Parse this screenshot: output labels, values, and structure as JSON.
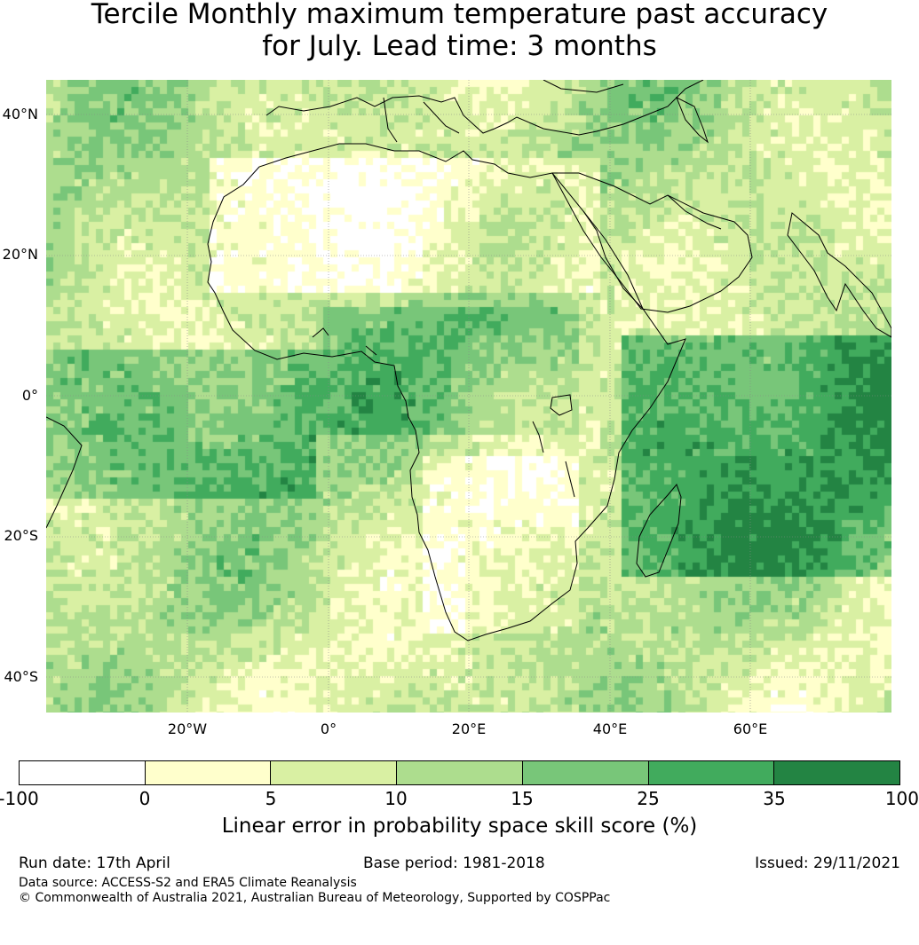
{
  "title_line1": "Tercile Monthly maximum temperature past accuracy",
  "title_line2": "for July. Lead time: 3 months",
  "lat_labels": [
    "40°N",
    "20°N",
    "0°",
    "20°S",
    "40°S"
  ],
  "lon_labels": [
    "20°W",
    "0°",
    "20°E",
    "40°E",
    "60°E"
  ],
  "colorbar": {
    "tick_labels": [
      "-100",
      "0",
      "5",
      "10",
      "15",
      "25",
      "35",
      "100"
    ],
    "colors": [
      "#ffffff",
      "#ffffcc",
      "#d9f0a3",
      "#addd8e",
      "#78c679",
      "#41ab5d",
      "#238443"
    ],
    "label": "Linear error in probability space skill score (%)"
  },
  "footer": {
    "run_date": "Run date: 17th April",
    "base_period": "Base period: 1981-2018",
    "issued": "Issued: 29/11/2021",
    "data_source": "Data source: ACCESS-S2 and ERA5 Climate Reanalysis",
    "copyright": "© Commonwealth of Australia 2021, Australian Bureau of Meteorology, Supported by COSPPac"
  }
}
